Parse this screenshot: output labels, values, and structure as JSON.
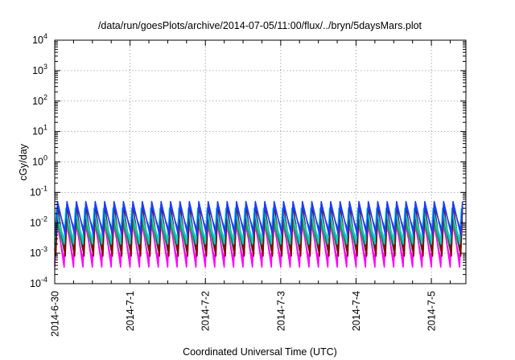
{
  "chart_data": {
    "type": "line",
    "title": "/data/run/goesPlots/archive/2014-07-05/11:00/flux/../bryn/5daysMars.plot",
    "xlabel": "Coordinated Universal Time (UTC)",
    "ylabel": "cGy/day",
    "yscale": "log",
    "ylim": [
      0.0001,
      10000
    ],
    "xlim": [
      "2014-06-30 00:00",
      "2014-07-05 11:00"
    ],
    "x_ticks": [
      "2014-6-30",
      "2014-7-1",
      "2014-7-2",
      "2014-7-3",
      "2014-7-4",
      "2014-7-5"
    ],
    "y_ticks": [
      {
        "base": "10",
        "exp": "-4"
      },
      {
        "base": "10",
        "exp": "-3"
      },
      {
        "base": "10",
        "exp": "-2"
      },
      {
        "base": "10",
        "exp": "-1"
      },
      {
        "base": "10",
        "exp": "0"
      },
      {
        "base": "10",
        "exp": "1"
      },
      {
        "base": "10",
        "exp": "2"
      },
      {
        "base": "10",
        "exp": "3"
      },
      {
        "base": "10",
        "exp": "4"
      }
    ],
    "grid": true,
    "oscillation_period_hours": 3,
    "series": [
      {
        "color": "#ff00ff",
        "peak": 0.02,
        "trough": 0.00035
      },
      {
        "color": "#a0a0a0",
        "peak": 0.012,
        "trough": 0.0012
      },
      {
        "color": "#00b050",
        "peak": 0.015,
        "trough": 0.0012
      },
      {
        "color": "#8b0000",
        "peak": 0.035,
        "trough": 0.0008
      },
      {
        "color": "#00ced1",
        "peak": 0.03,
        "trough": 0.002
      },
      {
        "color": "#1e3cff",
        "peak": 0.05,
        "trough": 0.004
      }
    ]
  }
}
